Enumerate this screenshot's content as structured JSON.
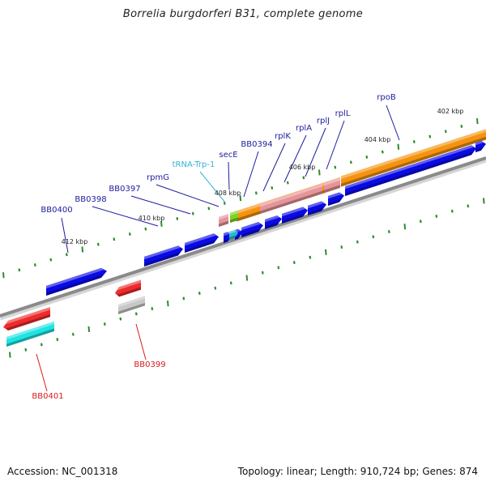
{
  "title": "Borrelia burgdorferi B31, complete genome",
  "footer": {
    "accession": "Accession: NC_001318",
    "summary": "Topology: linear; Length: 910,724 bp; Genes: 874"
  },
  "colors": {
    "backbone": "#8a8a8a",
    "cds": "#0a0ae6",
    "rrna": "#ee2b2b",
    "rrna_light": "#e6949a",
    "trna": "#2ab8cf",
    "trna_label": "#32b4d8",
    "ncrna": "#7ed321",
    "pseudo": "#c8c8c8",
    "orange": "#f5930f",
    "cyan": "#21e3e3",
    "tick": "#2e8b2e",
    "label_plus": "#1c1c9c",
    "label_minus": "#d81b1b"
  },
  "kbp_labels": [
    "402 kbp",
    "404 kbp",
    "406 kbp",
    "408 kbp",
    "410 kbp",
    "412 kbp"
  ],
  "gene_labels": [
    {
      "name": "rpoB",
      "strand": "plus"
    },
    {
      "name": "rplL",
      "strand": "plus"
    },
    {
      "name": "rplJ",
      "strand": "plus"
    },
    {
      "name": "rplA",
      "strand": "plus"
    },
    {
      "name": "rplK",
      "strand": "plus"
    },
    {
      "name": "BB0394",
      "strand": "plus"
    },
    {
      "name": "secE",
      "strand": "plus"
    },
    {
      "name": "tRNA-Trp-1",
      "strand": "trna"
    },
    {
      "name": "rpmG",
      "strand": "plus"
    },
    {
      "name": "BB0397",
      "strand": "plus"
    },
    {
      "name": "BB0398",
      "strand": "plus"
    },
    {
      "name": "BB0400",
      "strand": "plus"
    },
    {
      "name": "BB0399",
      "strand": "minus"
    },
    {
      "name": "BB0401",
      "strand": "minus"
    }
  ]
}
